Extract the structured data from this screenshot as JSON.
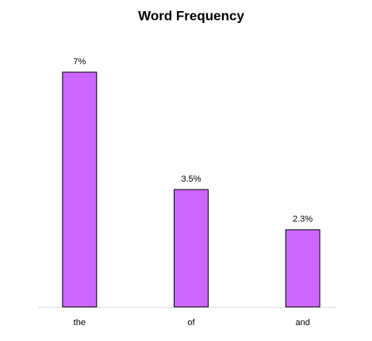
{
  "chart_data": {
    "type": "bar",
    "title": "Word Frequency",
    "categories": [
      "the",
      "of",
      "and"
    ],
    "values": [
      7,
      3.5,
      2.3
    ],
    "value_labels": [
      "7%",
      "3.5%",
      "2.3%"
    ],
    "color": "#cc66ff"
  }
}
